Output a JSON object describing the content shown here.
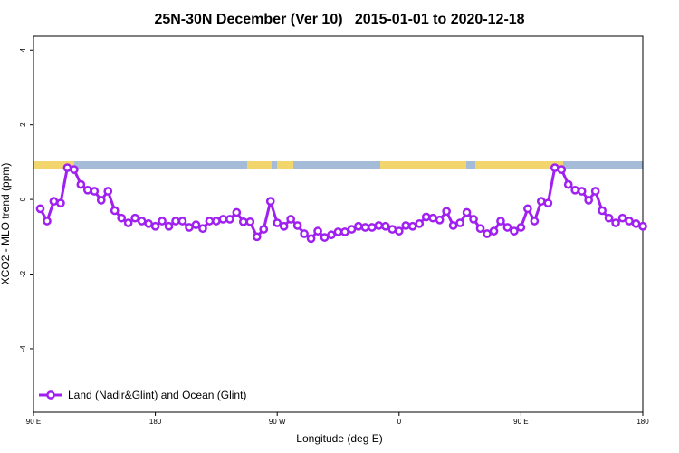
{
  "chart_data": {
    "type": "line",
    "title": "25N-30N December (Ver 10)   2015-01-01 to 2020-12-18",
    "xlabel": "Longitude (deg E)",
    "ylabel": "XCO2 - MLO trend (ppm)",
    "x": [
      95,
      100,
      105,
      110,
      115,
      120,
      125,
      130,
      135,
      140,
      145,
      150,
      155,
      160,
      165,
      170,
      175,
      180,
      185,
      190,
      195,
      200,
      205,
      210,
      215,
      220,
      225,
      230,
      235,
      240,
      245,
      250,
      255,
      260,
      265,
      270,
      275,
      280,
      285,
      290,
      295,
      300,
      305,
      310,
      315,
      320,
      325,
      330,
      335,
      340,
      345,
      350,
      355,
      360,
      365,
      370,
      375,
      380,
      385,
      390,
      395,
      400,
      405,
      410,
      415,
      420,
      425,
      430,
      435,
      440,
      445,
      450,
      455,
      460,
      465,
      470,
      475,
      480,
      485,
      490,
      495,
      500,
      505,
      510,
      515,
      520,
      525,
      530,
      535,
      540
    ],
    "series": [
      {
        "name": "Land (Nadir&Glint) and Ocean (Glint)",
        "color": "#a020f0",
        "values": [
          -0.25,
          -0.58,
          -0.05,
          -0.1,
          0.85,
          0.8,
          0.4,
          0.25,
          0.22,
          -0.02,
          0.22,
          -0.3,
          -0.5,
          -0.63,
          -0.5,
          -0.58,
          -0.65,
          -0.72,
          -0.58,
          -0.72,
          -0.58,
          -0.58,
          -0.75,
          -0.68,
          -0.78,
          -0.58,
          -0.58,
          -0.53,
          -0.53,
          -0.35,
          -0.6,
          -0.6,
          -1.0,
          -0.8,
          -0.05,
          -0.63,
          -0.72,
          -0.53,
          -0.7,
          -0.92,
          -1.05,
          -0.85,
          -1.02,
          -0.95,
          -0.87,
          -0.87,
          -0.8,
          -0.72,
          -0.75,
          -0.75,
          -0.7,
          -0.72,
          -0.8,
          -0.85,
          -0.7,
          -0.72,
          -0.65,
          -0.47,
          -0.5,
          -0.55,
          -0.32,
          -0.7,
          -0.63,
          -0.35,
          -0.53,
          -0.78,
          -0.92,
          -0.85,
          -0.58,
          -0.75,
          -0.85,
          -0.75,
          -0.25,
          -0.58,
          -0.05,
          -0.1,
          0.85,
          0.8,
          0.4,
          0.25,
          0.22,
          -0.02,
          0.22,
          -0.3,
          -0.5,
          -0.63,
          -0.5,
          -0.58,
          -0.65,
          -0.72
        ]
      }
    ],
    "xlim": [
      90,
      540
    ],
    "xticks": [
      {
        "value": 90,
        "label": "90 E"
      },
      180,
      {
        "value": 270,
        "label": "90 W"
      },
      {
        "value": 360,
        "label": "0"
      },
      {
        "value": 450,
        "label": "90 E"
      },
      {
        "value": 540,
        "label": "180"
      }
    ],
    "ylim": [
      -5.7,
      4.37
    ],
    "yticks": [
      4,
      2,
      0,
      -2,
      -4
    ],
    "legend": "bottom-left"
  }
}
